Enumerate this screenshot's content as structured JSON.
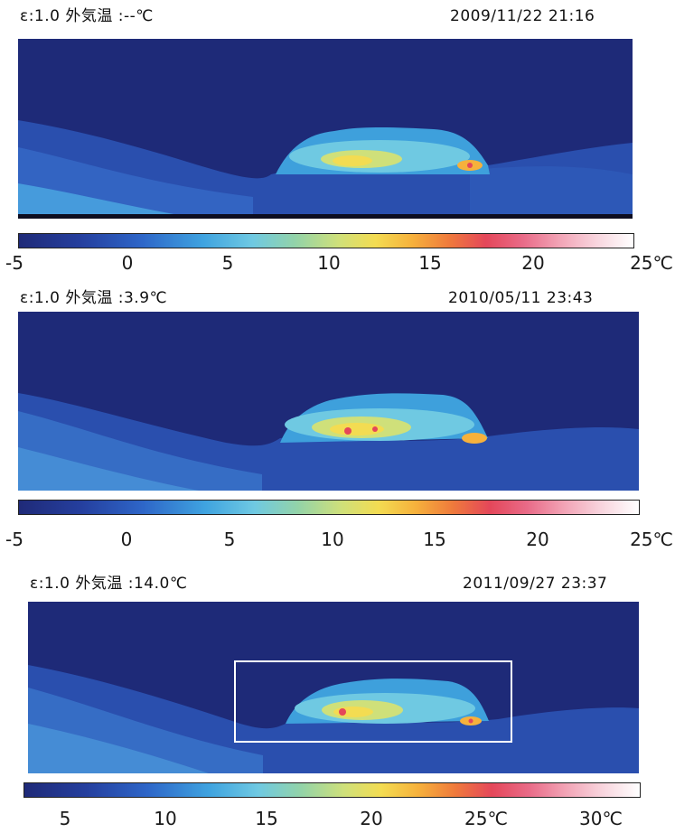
{
  "panels": [
    {
      "header_left": "ε:1.0 外気温 :--℃",
      "timestamp": "2009/11/22 21:16",
      "scale_ticks": [
        "-5",
        "0",
        "5",
        "10",
        "15",
        "20",
        "25℃"
      ]
    },
    {
      "header_left": "ε:1.0 外気温 :3.9℃",
      "timestamp": "2010/05/11 23:43",
      "scale_ticks": [
        "-5",
        "0",
        "5",
        "10",
        "15",
        "20",
        "25℃"
      ]
    },
    {
      "header_left": "ε:1.0 外気温 :14.0℃",
      "timestamp": "2011/09/27 23:37",
      "scale_ticks": [
        "5",
        "10",
        "15",
        "20",
        "25℃",
        "30℃"
      ]
    }
  ],
  "colors": {
    "sky": "#1e2a78",
    "ground": "#2a4fae",
    "slope_light": "#3d7fd0",
    "dome_hot": "#f3dc52",
    "dome_core": "#e4475a",
    "highlight_box": "#ffffff"
  }
}
